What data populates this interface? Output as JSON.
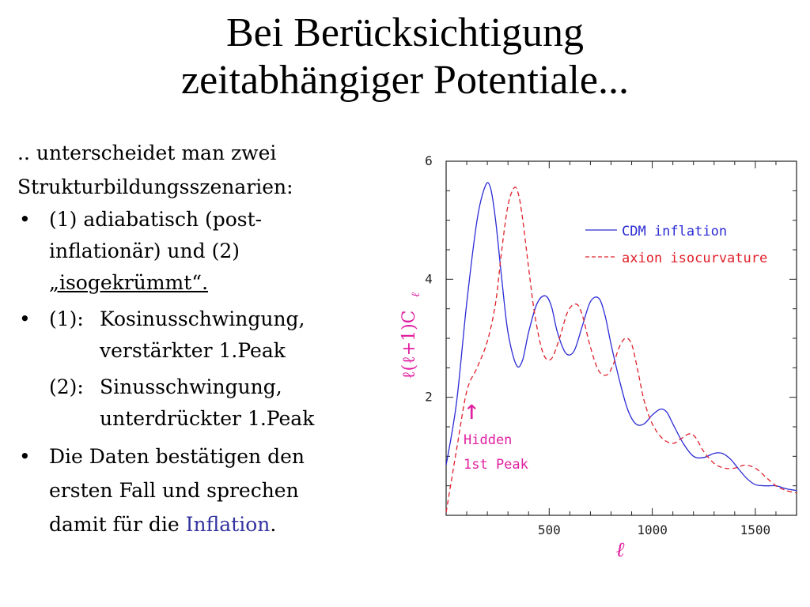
{
  "title": {
    "line1": "Bei Berücksichtigung",
    "line2": "zeitabhängiger Potentiale..."
  },
  "body": {
    "intro1": ".. unterscheidet man zwei",
    "intro2": "Strukturbildungsszenarien:",
    "bullet_glyph": "•",
    "b1_l1": "(1) adiabatisch (post-",
    "b1_l2": "inflationär) und (2)",
    "b1_l3": "„isogekrümmt“.",
    "b2_label": "(1):",
    "b2_l1": "Kosinusschwingung,",
    "b2_l2": "verstärkter 1.Peak",
    "b3_label": "(2):",
    "b3_l1": "Sinusschwingung,",
    "b3_l2": "unterdrückter 1.Peak",
    "b4_l1": "Die Daten bestätigen den",
    "b4_l2": "ersten Fall und sprechen",
    "b4_l3a": "damit für die ",
    "b4_link": "Inflation",
    "b4_l3b": "."
  },
  "chart_data": {
    "type": "line",
    "xlabel": "ℓ",
    "ylabel": "ℓ(ℓ+1)C",
    "ylabel_sub": "ℓ",
    "xlim": [
      0,
      1700
    ],
    "ylim": [
      0,
      6
    ],
    "xticks": [
      500,
      1000,
      1500
    ],
    "yticks": [
      2,
      4,
      6
    ],
    "legend_position": "top-right",
    "annotation": {
      "arrow": "↑",
      "line1": "Hidden",
      "line2": "1st Peak",
      "x": 130,
      "y": 2.0
    },
    "colors": {
      "cdm": "#2b2bd6",
      "axion": "#e0202a",
      "annotation": "#e020a0"
    },
    "series": [
      {
        "name": "CDM inflation",
        "style": "solid",
        "x": [
          0,
          50,
          100,
          150,
          190,
          215,
          240,
          270,
          300,
          340,
          370,
          400,
          440,
          480,
          510,
          540,
          580,
          620,
          660,
          700,
          740,
          770,
          800,
          840,
          880,
          920,
          960,
          1000,
          1040,
          1070,
          1100,
          1150,
          1200,
          1250,
          1300,
          1340,
          1380,
          1420,
          1460,
          1500,
          1550,
          1600,
          1650,
          1700
        ],
        "y": [
          0.85,
          1.9,
          3.6,
          5.0,
          5.58,
          5.55,
          5.0,
          4.0,
          3.1,
          2.55,
          2.62,
          3.1,
          3.58,
          3.72,
          3.55,
          3.1,
          2.75,
          2.78,
          3.2,
          3.62,
          3.68,
          3.4,
          2.9,
          2.3,
          1.8,
          1.55,
          1.55,
          1.7,
          1.8,
          1.75,
          1.55,
          1.22,
          1.0,
          0.98,
          1.05,
          1.05,
          0.95,
          0.78,
          0.62,
          0.52,
          0.5,
          0.5,
          0.45,
          0.42
        ]
      },
      {
        "name": "axion isocurvature",
        "style": "dashed",
        "x": [
          0,
          50,
          100,
          150,
          200,
          240,
          270,
          300,
          330,
          350,
          370,
          400,
          430,
          470,
          510,
          550,
          590,
          630,
          660,
          700,
          740,
          780,
          810,
          840,
          870,
          900,
          930,
          960,
          1000,
          1050,
          1100,
          1140,
          1180,
          1210,
          1250,
          1300,
          1350,
          1400,
          1450,
          1500,
          1550,
          1600,
          1650,
          1700
        ],
        "y": [
          0.05,
          1.1,
          2.1,
          2.5,
          2.95,
          3.6,
          4.5,
          5.25,
          5.55,
          5.45,
          5.05,
          4.2,
          3.4,
          2.75,
          2.65,
          3.0,
          3.45,
          3.58,
          3.4,
          2.85,
          2.45,
          2.38,
          2.55,
          2.85,
          3.0,
          2.9,
          2.45,
          1.95,
          1.55,
          1.3,
          1.22,
          1.3,
          1.38,
          1.32,
          1.08,
          0.88,
          0.8,
          0.8,
          0.85,
          0.8,
          0.65,
          0.5,
          0.42,
          0.38
        ]
      }
    ]
  }
}
